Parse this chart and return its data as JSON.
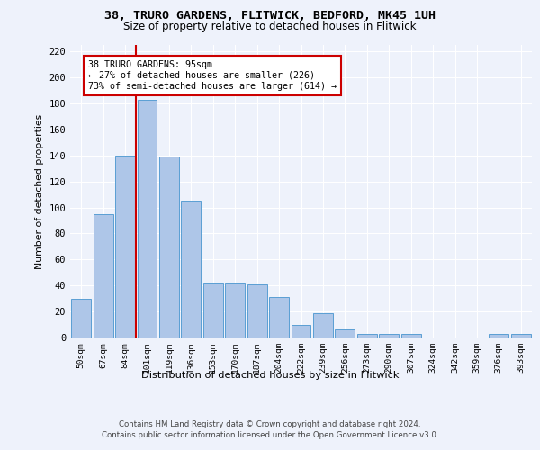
{
  "title_line1": "38, TRURO GARDENS, FLITWICK, BEDFORD, MK45 1UH",
  "title_line2": "Size of property relative to detached houses in Flitwick",
  "xlabel": "Distribution of detached houses by size in Flitwick",
  "ylabel": "Number of detached properties",
  "categories": [
    "50sqm",
    "67sqm",
    "84sqm",
    "101sqm",
    "119sqm",
    "136sqm",
    "153sqm",
    "170sqm",
    "187sqm",
    "204sqm",
    "222sqm",
    "239sqm",
    "256sqm",
    "273sqm",
    "290sqm",
    "307sqm",
    "324sqm",
    "342sqm",
    "359sqm",
    "376sqm",
    "393sqm"
  ],
  "values": [
    30,
    95,
    140,
    183,
    139,
    105,
    42,
    42,
    41,
    31,
    10,
    19,
    6,
    3,
    3,
    3,
    0,
    0,
    0,
    3,
    3
  ],
  "bar_color": "#aec6e8",
  "bar_edge_color": "#5a9fd4",
  "annotation_text": "38 TRURO GARDENS: 95sqm\n← 27% of detached houses are smaller (226)\n73% of semi-detached houses are larger (614) →",
  "annotation_box_color": "#ffffff",
  "annotation_box_edge_color": "#cc0000",
  "vline_color": "#cc0000",
  "ylim": [
    0,
    225
  ],
  "yticks": [
    0,
    20,
    40,
    60,
    80,
    100,
    120,
    140,
    160,
    180,
    200,
    220
  ],
  "background_color": "#eef2fb",
  "grid_color": "#ffffff",
  "footer_line1": "Contains HM Land Registry data © Crown copyright and database right 2024.",
  "footer_line2": "Contains public sector information licensed under the Open Government Licence v3.0."
}
